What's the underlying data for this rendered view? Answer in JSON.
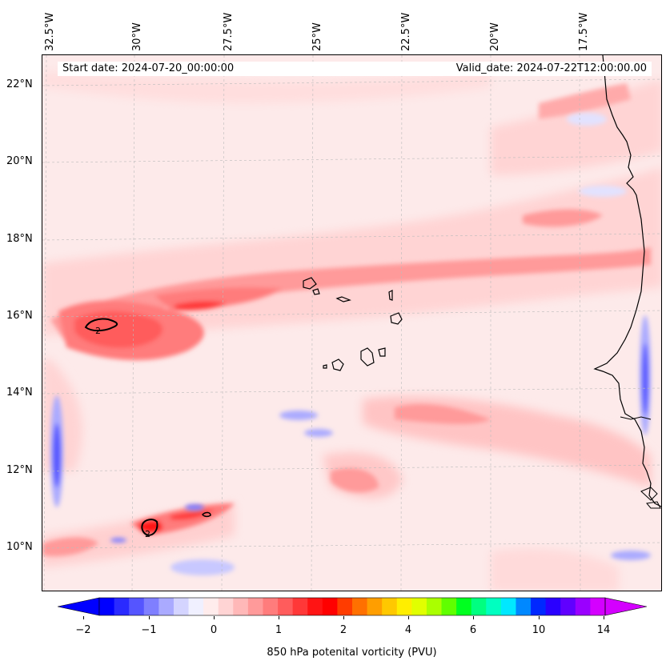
{
  "header": {
    "start_date": "Start date: 2024-07-20_00:00:00",
    "valid_date": "Valid_date: 2024-07-22T12:00:00.00"
  },
  "axes": {
    "lon_labels": [
      "32.5°W",
      "30°W",
      "27.5°W",
      "25°W",
      "22.5°W",
      "20°W",
      "17.5°W"
    ],
    "lat_labels": [
      "22°N",
      "20°N",
      "18°N",
      "16°N",
      "14°N",
      "12°N",
      "10°N"
    ]
  },
  "contour_labels": [
    "2",
    "2"
  ],
  "colorbar": {
    "label": "850 hPa potenital vorticity (PVU)",
    "ticks": [
      "−2",
      "−1",
      "0",
      "1",
      "2",
      "4",
      "6",
      "10",
      "14"
    ],
    "colors": [
      "#0000ff",
      "#2a2aff",
      "#5555ff",
      "#7f7fff",
      "#aaaaff",
      "#d4d4ff",
      "#f0f0ff",
      "#ffecec",
      "#ffd4d4",
      "#ffb8b8",
      "#ff9a9a",
      "#ff7c7c",
      "#ff5c5c",
      "#ff3838",
      "#ff1414",
      "#ff0000",
      "#ff3c00",
      "#ff7000",
      "#ff9e00",
      "#ffc800",
      "#ffee00",
      "#e1ff00",
      "#aaff00",
      "#60ff00",
      "#00ff20",
      "#00ff80",
      "#00ffc0",
      "#00e8ff",
      "#0088ff",
      "#0028ff",
      "#2a00ff",
      "#6000ff",
      "#9a00ff",
      "#d400ff"
    ]
  },
  "colors": {
    "land_outline": "#000000",
    "grid": "#bbbbbb"
  }
}
